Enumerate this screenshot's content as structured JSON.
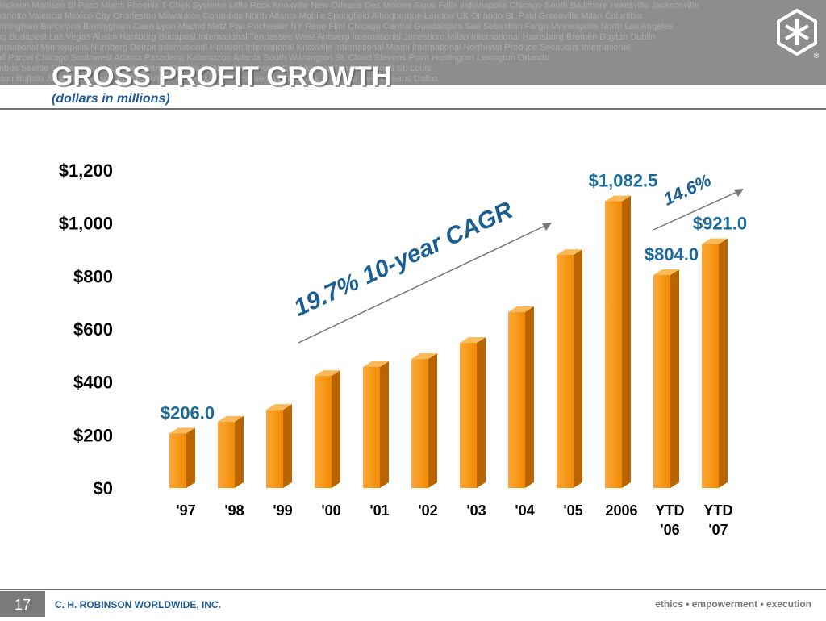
{
  "header": {
    "texture": [
      "Jackson  Madison  El Paso  Miami  Phoenix  T-Chek Systems  Little Rock  Knoxville  New Orleans  Des Moines  Sioux Falls  Indianapolis  Chicago South  Baltimore  Huntsville  Jacksonville",
      "harlotte  Valencia  Mexico City  Charleston  Milwaukee  Columbus  North Atlanta  Mobile  Springfield  Albuquerque  London UK  Orlando  St. Paul  Greenville  Milan  Columbia",
      "irmingham  Barcelona  Birmingham  Caen  Lyon  Madrid  Metz  Pau  Rochester NY  Reno  Flint  Chicago Central  Guadalajara  San Sebastian  Fargo  Minneapolis North  Los Angeles",
      "ng  Budapest  Las Vegas  Austin  Hamburg  Budapest International  Tennessee West  Antwerp International  Jonesboro  Milan International  Harrisburg  Bremen  Dayton  Dublin",
      "ternational  Minneapolis  Nurnberg  Detroit International  Houston International  Knoxville International  Miami International  Northeast Produce  Secaucus International",
      "ull Parcel  Chicago Southwest  Atlanta  Pasadena  Kalamazoo  Atlanta South  Wilmington  St. Cloud  Stevens Point  Huntington  Lexington  Orlando",
      "mbus  Seattle  Chicago North  Denver  Detroit  Omaha  Spokane  Oklahoma City  Montreal  Toronto  Peoria  St. Louis",
      "ston  Buffalo  Jackson  Madison  El Paso  Miami  Phoenix  T-Chek Systems  Little Rock  Knoxville  New Orleans  Dallas"
    ],
    "logo_mark": "®"
  },
  "chart_data": {
    "type": "bar3d",
    "title": "GROSS PROFIT GROWTH",
    "subtitle": "(dollars in millions)",
    "categories": [
      "'97",
      "'98",
      "'99",
      "'00",
      "'01",
      "'02",
      "'03",
      "'04",
      "'05",
      "2006",
      "YTD '06",
      "YTD '07"
    ],
    "values": [
      206.0,
      250,
      295,
      423,
      457,
      487,
      548,
      664,
      880,
      1082.5,
      804.0,
      921.0
    ],
    "value_labels": [
      "$206.0",
      null,
      null,
      null,
      null,
      null,
      null,
      null,
      null,
      "$1,082.5",
      "$804.0",
      "$921.0"
    ],
    "color": "#f7940f",
    "ylim": [
      0,
      1200
    ],
    "yticks": [
      {
        "value": 0,
        "label": "$0"
      },
      {
        "value": 200,
        "label": "$200"
      },
      {
        "value": 400,
        "label": "$400"
      },
      {
        "value": 600,
        "label": "$600"
      },
      {
        "value": 800,
        "label": "$800"
      },
      {
        "value": 1000,
        "label": "$1,000"
      },
      {
        "value": 1200,
        "label": "$1,200"
      }
    ],
    "grid": false,
    "annotations": [
      "19.7% 10-year CAGR",
      "14.6%"
    ]
  },
  "footer": {
    "page": "17",
    "company": "C. H. ROBINSON WORLDWIDE, INC.",
    "tagline": "ethics • empowerment • execution"
  }
}
